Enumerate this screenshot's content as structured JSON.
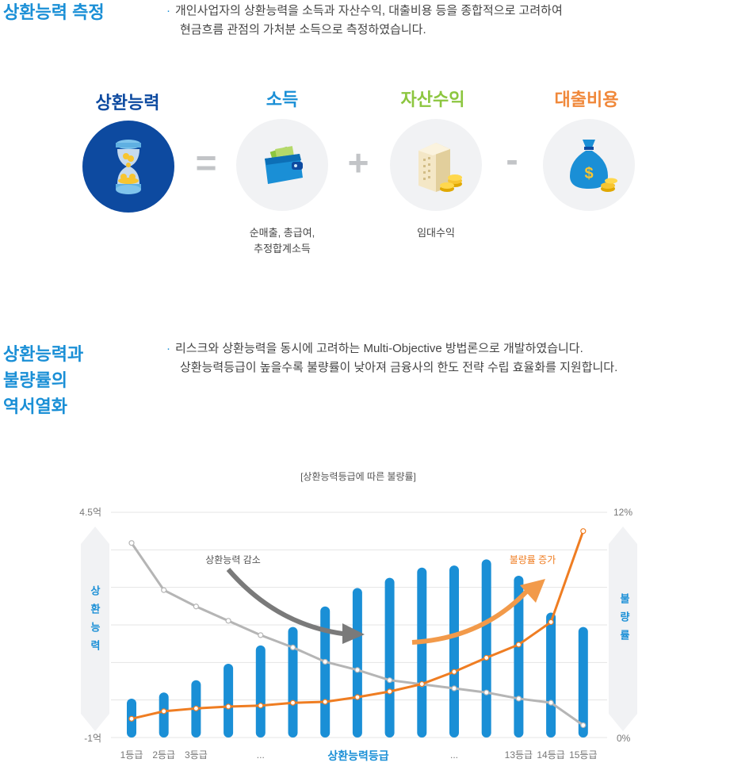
{
  "section1": {
    "title": "상환능력 측정",
    "bullet": "·",
    "desc_line1": "개인사업자의 상환능력을 소득과 자산수익, 대출비용 등을 종합적으로 고려하여",
    "desc_line2": "현금흐름 관점의 가처분 소득으로 측정하였습니다."
  },
  "formula": {
    "repay": "상환능력",
    "income": "소득",
    "asset": "자산수익",
    "loan": "대출비용",
    "eq": "=",
    "plus": "+",
    "minus": "-",
    "income_sub1": "순매출, 총급여,",
    "income_sub2": "추정합계소득",
    "asset_sub": "임대수익",
    "colors": {
      "repay": "#0d4aa0",
      "income": "#1a8fd6",
      "asset": "#8cc63f",
      "loan": "#f0883a"
    }
  },
  "section2": {
    "title1": "상환능력과",
    "title2": "불량률의",
    "title3": "역서열화",
    "bullet": "·",
    "desc_line1": "리스크와 상환능력을 동시에 고려하는 Multi-Objective 방법론으로 개발하였습니다.",
    "desc_line2": "상환능력등급이 높을수록 불량률이 낮아져 금융사의 한도 전략 수립 효율화를 지원합니다."
  },
  "chart_data": {
    "type": "bar",
    "title": "[상환능력등급에 따른 불량률]",
    "xlabel": "상환능력등급",
    "x_tick_labels": [
      "1등급",
      "2등급",
      "3등급",
      "...",
      "...",
      "13등급",
      "14등급",
      "15등급"
    ],
    "categories": [
      "1",
      "2",
      "3",
      "4",
      "5",
      "6",
      "7",
      "8",
      "9",
      "10",
      "11",
      "12",
      "13",
      "14",
      "15"
    ],
    "left_axis": {
      "label": "상환능력",
      "top": "4.5억",
      "bottom": "-1억",
      "ylim": [
        -1,
        4.5
      ]
    },
    "right_axis": {
      "label": "불량률",
      "top": "12%",
      "bottom": "0%",
      "ylim": [
        0,
        12
      ]
    },
    "series": [
      {
        "kind": "bar",
        "values": [
          -0.05,
          0.1,
          0.4,
          0.8,
          1.25,
          1.7,
          2.2,
          2.65,
          2.9,
          3.15,
          3.2,
          3.35,
          2.95,
          2.05,
          1.7
        ]
      },
      {
        "kind": "line",
        "axis": "left",
        "values": [
          3.75,
          2.6,
          2.2,
          1.85,
          1.5,
          1.2,
          0.85,
          0.65,
          0.4,
          0.3,
          0.2,
          0.1,
          -0.05,
          -0.15,
          -0.7
        ]
      },
      {
        "kind": "line",
        "axis": "right",
        "values": [
          1.0,
          1.4,
          1.55,
          1.65,
          1.7,
          1.85,
          1.9,
          2.15,
          2.45,
          2.85,
          3.5,
          4.25,
          4.95,
          6.15,
          11.0
        ]
      }
    ],
    "annotations": {
      "decrease": "상환능력 감소",
      "increase": "불량률 증가"
    },
    "colors": {
      "bar": "#1a8fd6",
      "repay_line": "#b5b5b5",
      "default_line": "#ef7d22",
      "grid": "#e5e5e5"
    }
  }
}
